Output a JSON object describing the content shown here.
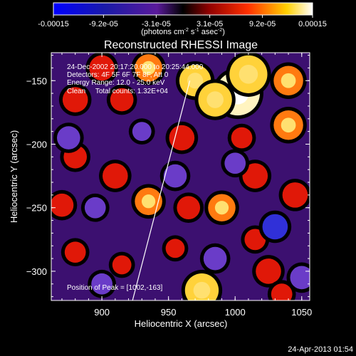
{
  "chart_data": {
    "type": "heatmap",
    "title": "Reconstructed RHESSI Image",
    "xlabel": "Heliocentric X (arcsec)",
    "ylabel": "Heliocentric Y (arcsec)",
    "xlim": [
      862,
      1056
    ],
    "ylim": [
      -323,
      -128
    ],
    "x_ticks": [
      {
        "value": 900,
        "label": "900"
      },
      {
        "value": 950,
        "label": "950"
      },
      {
        "value": 1000,
        "label": "1000"
      },
      {
        "value": 1050,
        "label": "1050"
      }
    ],
    "y_ticks": [
      {
        "value": -150,
        "label": "-150"
      },
      {
        "value": -200,
        "label": "-200"
      },
      {
        "value": -250,
        "label": "-250"
      },
      {
        "value": -300,
        "label": "-300"
      }
    ],
    "colorbar": {
      "range": [
        -0.00015,
        0.00015
      ],
      "tick_labels": [
        {
          "value": -0.00015,
          "label": "-0.00015"
        },
        {
          "value": -9.2e-05,
          "label": "-9.2e-05"
        },
        {
          "value": -3.1e-05,
          "label": "-3.1e-05"
        },
        {
          "value": 3.1e-05,
          "label": "3.1e-05"
        },
        {
          "value": 9.2e-05,
          "label": "9.2e-05"
        },
        {
          "value": 0.00015,
          "label": "0.00015"
        }
      ],
      "unit_prefix": "(photons cm",
      "unit_exp1": "-2",
      "unit_mid1": " s",
      "unit_exp2": "-1",
      "unit_mid2": " asec",
      "unit_exp3": "-2",
      "unit_suffix": ")"
    },
    "annotations": [
      "24-Dec-2002 20:17:20.000 to 20:25:44.000",
      "Detectors: 4F 5F 6F 7F 8F, Att 0",
      "Energy Range: 12.0 - 25.0 keV",
      "Clean     Total counts: 1.32E+04"
    ],
    "peak_label": "Position of Peak = [1002,-163]",
    "peak": [
      1002,
      -163
    ],
    "limb_line": [
      [
        923,
        -323
      ],
      [
        966,
        -150
      ]
    ],
    "sources": [
      {
        "x": 1002,
        "y": -160,
        "value": 0.00015
      },
      {
        "x": 1010,
        "y": -145,
        "value": 0.00012
      },
      {
        "x": 1040,
        "y": -150,
        "value": 8e-05
      },
      {
        "x": 970,
        "y": -150,
        "value": 9e-05
      },
      {
        "x": 985,
        "y": -165,
        "value": 0.0001
      },
      {
        "x": 935,
        "y": -140,
        "value": 7e-05
      },
      {
        "x": 900,
        "y": -140,
        "value": 6e-05
      },
      {
        "x": 880,
        "y": -165,
        "value": 6e-05
      },
      {
        "x": 915,
        "y": -165,
        "value": 5e-05
      },
      {
        "x": 960,
        "y": -195,
        "value": 6e-05
      },
      {
        "x": 1040,
        "y": -185,
        "value": 8e-05
      },
      {
        "x": 1005,
        "y": -195,
        "value": 4e-05
      },
      {
        "x": 880,
        "y": -210,
        "value": 5e-05
      },
      {
        "x": 910,
        "y": -225,
        "value": 6e-05
      },
      {
        "x": 935,
        "y": -245,
        "value": 7e-05
      },
      {
        "x": 870,
        "y": -248,
        "value": 5e-05
      },
      {
        "x": 990,
        "y": -250,
        "value": 7e-05
      },
      {
        "x": 1015,
        "y": -225,
        "value": 6e-05
      },
      {
        "x": 1045,
        "y": -240,
        "value": 6e-05
      },
      {
        "x": 965,
        "y": -250,
        "value": 5e-05
      },
      {
        "x": 880,
        "y": -285,
        "value": 4e-05
      },
      {
        "x": 915,
        "y": -295,
        "value": 3e-05
      },
      {
        "x": 975,
        "y": -315,
        "value": 0.0001
      },
      {
        "x": 1025,
        "y": -300,
        "value": 6e-05
      },
      {
        "x": 1015,
        "y": -275,
        "value": 4e-05
      },
      {
        "x": 955,
        "y": -282,
        "value": 3e-05
      },
      {
        "x": 1035,
        "y": -318,
        "value": 4e-05
      },
      {
        "x": 895,
        "y": -250,
        "value": -4e-05
      },
      {
        "x": 875,
        "y": -195,
        "value": -5e-05
      },
      {
        "x": 955,
        "y": -225,
        "value": -5e-05
      },
      {
        "x": 1030,
        "y": -265,
        "value": -6e-05
      },
      {
        "x": 985,
        "y": -290,
        "value": -5e-05
      },
      {
        "x": 1000,
        "y": -215,
        "value": -4e-05
      },
      {
        "x": 900,
        "y": -310,
        "value": -4e-05
      },
      {
        "x": 1050,
        "y": -305,
        "value": -5e-05
      },
      {
        "x": 930,
        "y": -190,
        "value": -3e-05
      }
    ]
  },
  "footer": {
    "timestamp": "24-Apr-2013 01:54"
  },
  "colors": {
    "background": "#000000",
    "foreground": "#ffffff"
  }
}
